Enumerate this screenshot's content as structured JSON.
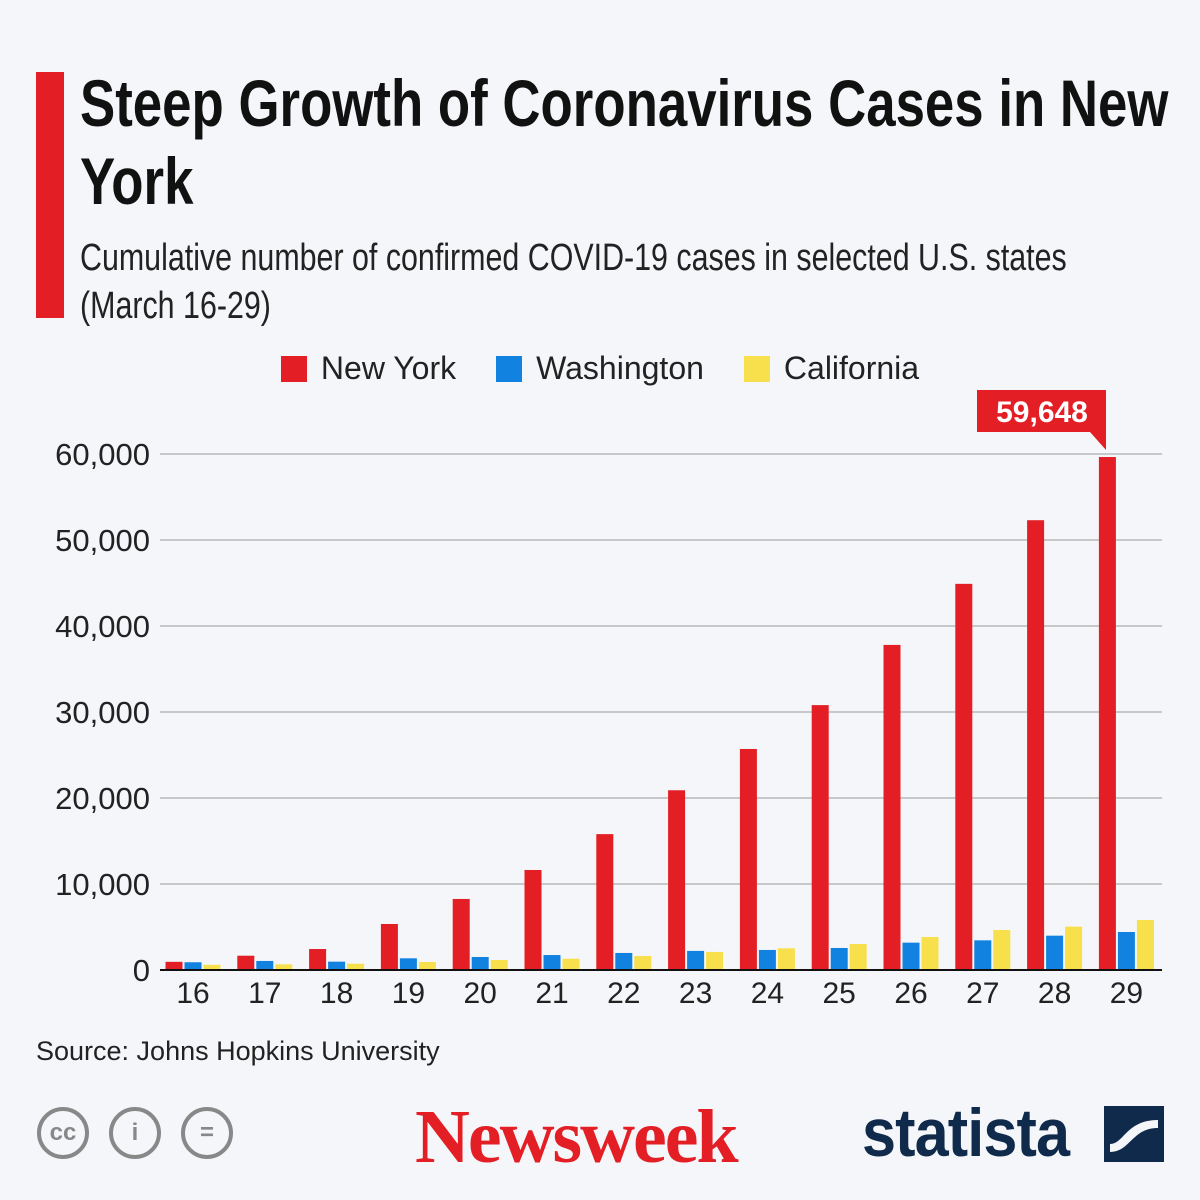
{
  "title": "Steep Growth of Coronavirus Cases in New York",
  "subtitle": "Cumulative number of confirmed COVID-19 cases in selected U.S. states (March 16-29)",
  "source": "Source: Johns Hopkins University",
  "logos": {
    "newsweek": "Newsweek",
    "statista": "statista",
    "cc": "cc",
    "by": "i",
    "nd": "="
  },
  "chart_data": {
    "type": "bar",
    "categories": [
      "16",
      "17",
      "18",
      "19",
      "20",
      "21",
      "22",
      "23",
      "24",
      "25",
      "26",
      "27",
      "28",
      "29"
    ],
    "series": [
      {
        "name": "New York",
        "color": "#e31e25",
        "values": [
          950,
          1660,
          2440,
          5350,
          8260,
          11630,
          15800,
          20900,
          25700,
          30800,
          37800,
          44900,
          52300,
          59648
        ]
      },
      {
        "name": "Washington",
        "color": "#1282e0",
        "values": [
          900,
          1050,
          970,
          1360,
          1510,
          1740,
          1980,
          2220,
          2330,
          2560,
          3180,
          3450,
          3990,
          4420
        ]
      },
      {
        "name": "California",
        "color": "#f7e04b",
        "values": [
          600,
          660,
          730,
          930,
          1160,
          1310,
          1630,
          2100,
          2520,
          3020,
          3840,
          4650,
          5040,
          5810
        ]
      }
    ],
    "ylim": [
      0,
      60000
    ],
    "yticks": [
      "0",
      "10,000",
      "20,000",
      "30,000",
      "40,000",
      "50,000",
      "60,000"
    ],
    "grid": true,
    "legend": "top",
    "annotation": "59,648"
  }
}
